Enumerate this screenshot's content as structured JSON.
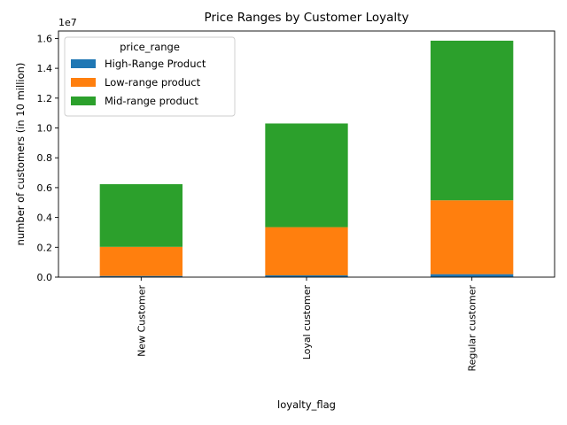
{
  "chart_data": {
    "type": "bar",
    "stacked": true,
    "title": "Price Ranges by Customer Loyalty",
    "xlabel": "loyalty_flag",
    "ylabel": "number of customers (in 10 million)",
    "y_offset_label": "1e7",
    "ylim": [
      0,
      1.65
    ],
    "yticks": [
      "0.0",
      "0.2",
      "0.4",
      "0.6",
      "0.8",
      "1.0",
      "1.2",
      "1.4",
      "1.6"
    ],
    "categories": [
      "New Customer",
      "Loyal customer",
      "Regular customer"
    ],
    "legend": {
      "title": "price_range",
      "position": "upper-left"
    },
    "grid": false,
    "series": [
      {
        "name": "High-Range Product",
        "color": "#1f77b4",
        "values": [
          0.008,
          0.012,
          0.02
        ]
      },
      {
        "name": "Low-range product",
        "color": "#ff7f0e",
        "values": [
          0.195,
          0.323,
          0.495
        ]
      },
      {
        "name": "Mid-range product",
        "color": "#2ca02c",
        "values": [
          0.42,
          0.695,
          1.07
        ]
      }
    ]
  }
}
